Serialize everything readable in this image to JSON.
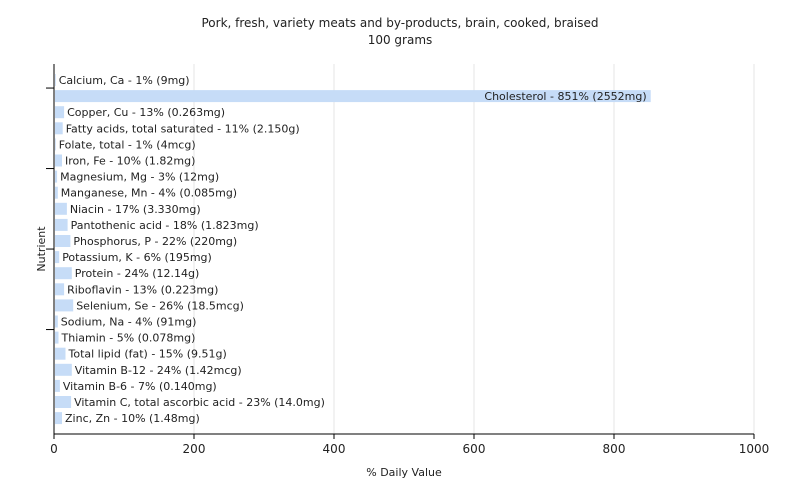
{
  "chart_data": {
    "type": "bar",
    "orientation": "horizontal",
    "title": "Pork, fresh, variety meats and by-products, brain, cooked, braised",
    "subtitle": "100 grams",
    "xlabel": "% Daily Value",
    "ylabel": "Nutrient",
    "xlim": [
      0,
      1000
    ],
    "xticks": [
      "0",
      "200",
      "400",
      "600",
      "800",
      "1000"
    ],
    "grid": true,
    "bar_color": "#c6dcf7",
    "categories": [
      "Calcium, Ca",
      "Cholesterol",
      "Copper, Cu",
      "Fatty acids, total saturated",
      "Folate, total",
      "Iron, Fe",
      "Magnesium, Mg",
      "Manganese, Mn",
      "Niacin",
      "Pantothenic acid",
      "Phosphorus, P",
      "Potassium, K",
      "Protein",
      "Riboflavin",
      "Selenium, Se",
      "Sodium, Na",
      "Thiamin",
      "Total lipid (fat)",
      "Vitamin B-12",
      "Vitamin B-6",
      "Vitamin C, total ascorbic acid",
      "Zinc, Zn"
    ],
    "values": [
      1,
      851,
      13,
      11,
      1,
      10,
      3,
      4,
      17,
      18,
      22,
      6,
      24,
      13,
      26,
      4,
      5,
      15,
      24,
      7,
      23,
      10
    ],
    "labels": [
      "Calcium, Ca - 1% (9mg)",
      "Cholesterol - 851% (2552mg)",
      "Copper, Cu - 13% (0.263mg)",
      "Fatty acids, total saturated - 11% (2.150g)",
      "Folate, total - 1% (4mcg)",
      "Iron, Fe - 10% (1.82mg)",
      "Magnesium, Mg - 3% (12mg)",
      "Manganese, Mn - 4% (0.085mg)",
      "Niacin - 17% (3.330mg)",
      "Pantothenic acid - 18% (1.823mg)",
      "Phosphorus, P - 22% (220mg)",
      "Potassium, K - 6% (195mg)",
      "Protein - 24% (12.14g)",
      "Riboflavin - 13% (0.223mg)",
      "Selenium, Se - 26% (18.5mcg)",
      "Sodium, Na - 4% (91mg)",
      "Thiamin - 5% (0.078mg)",
      "Total lipid (fat) - 15% (9.51g)",
      "Vitamin B-12 - 24% (1.42mcg)",
      "Vitamin B-6 - 7% (0.140mg)",
      "Vitamin C, total ascorbic acid - 23% (14.0mg)",
      "Zinc, Zn - 10% (1.48mg)"
    ]
  }
}
